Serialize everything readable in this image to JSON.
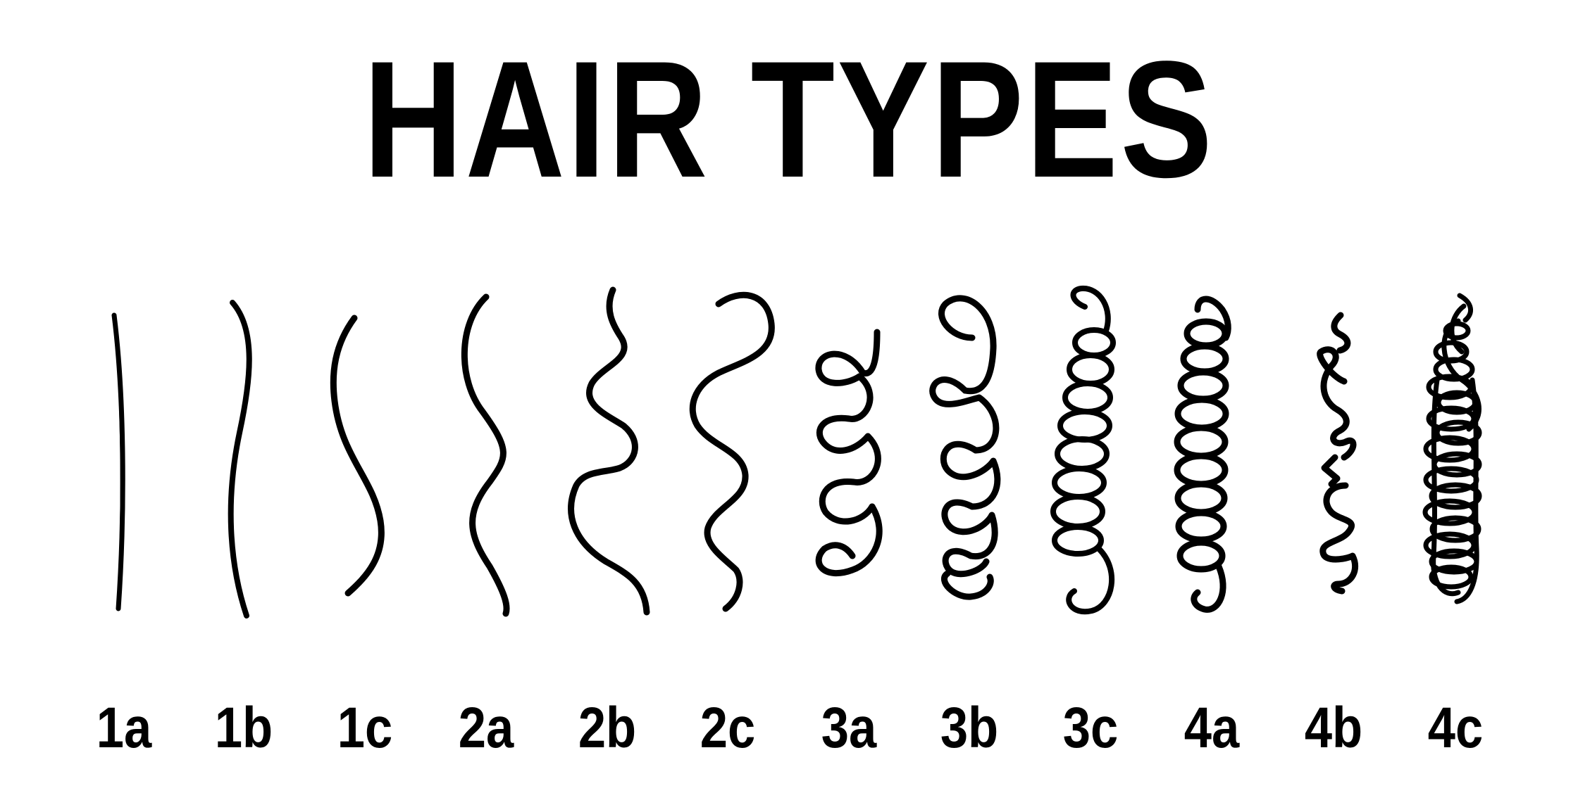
{
  "title": "HAIR TYPES",
  "hair_types": [
    {
      "label": "1a",
      "name": "hair-type-1a"
    },
    {
      "label": "1b",
      "name": "hair-type-1b"
    },
    {
      "label": "1c",
      "name": "hair-type-1c"
    },
    {
      "label": "2a",
      "name": "hair-type-2a"
    },
    {
      "label": "2b",
      "name": "hair-type-2b"
    },
    {
      "label": "2c",
      "name": "hair-type-2c"
    },
    {
      "label": "3a",
      "name": "hair-type-3a"
    },
    {
      "label": "3b",
      "name": "hair-type-3b"
    },
    {
      "label": "3c",
      "name": "hair-type-3c"
    },
    {
      "label": "4a",
      "name": "hair-type-4a"
    },
    {
      "label": "4b",
      "name": "hair-type-4b"
    },
    {
      "label": "4c",
      "name": "hair-type-4c"
    }
  ],
  "colors": {
    "ink": "#000000",
    "background": "#ffffff"
  }
}
